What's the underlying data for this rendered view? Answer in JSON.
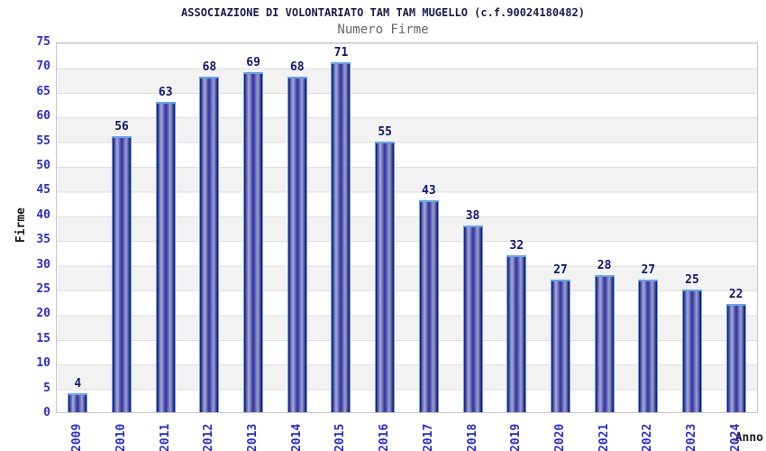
{
  "chart_data": {
    "type": "bar",
    "title": "ASSOCIAZIONE DI VOLONTARIATO TAM TAM MUGELLO (c.f.90024180482)",
    "subtitle": "Numero Firme",
    "xlabel": "Anno",
    "ylabel": "Firme",
    "categories": [
      "2009",
      "2010",
      "2011",
      "2012",
      "2013",
      "2014",
      "2015",
      "2016",
      "2017",
      "2018",
      "2019",
      "2020",
      "2021",
      "2022",
      "2023",
      "2024"
    ],
    "values": [
      4,
      56,
      63,
      68,
      69,
      68,
      71,
      55,
      43,
      38,
      32,
      27,
      28,
      27,
      25,
      22
    ],
    "ylim": [
      0,
      75
    ],
    "yticks": [
      0,
      5,
      10,
      15,
      20,
      25,
      30,
      35,
      40,
      45,
      50,
      55,
      60,
      65,
      70,
      75
    ],
    "grid": true,
    "band_fill": true,
    "legend": "none",
    "colors": {
      "title": "#1b1b4f",
      "subtitle": "#666666",
      "tick_label": "#2b2bd3",
      "value_label": "#15156d",
      "axis_label": "#1a1a1a",
      "band": "#f2f2f2",
      "gridline": "#dedede",
      "plot_border": "#c8c8c8",
      "bar_border": "#63a4ec",
      "bar_gradient": [
        "#101070",
        "#a6aede",
        "#30309a",
        "#9aa2d6",
        "#0c0c66"
      ]
    }
  }
}
